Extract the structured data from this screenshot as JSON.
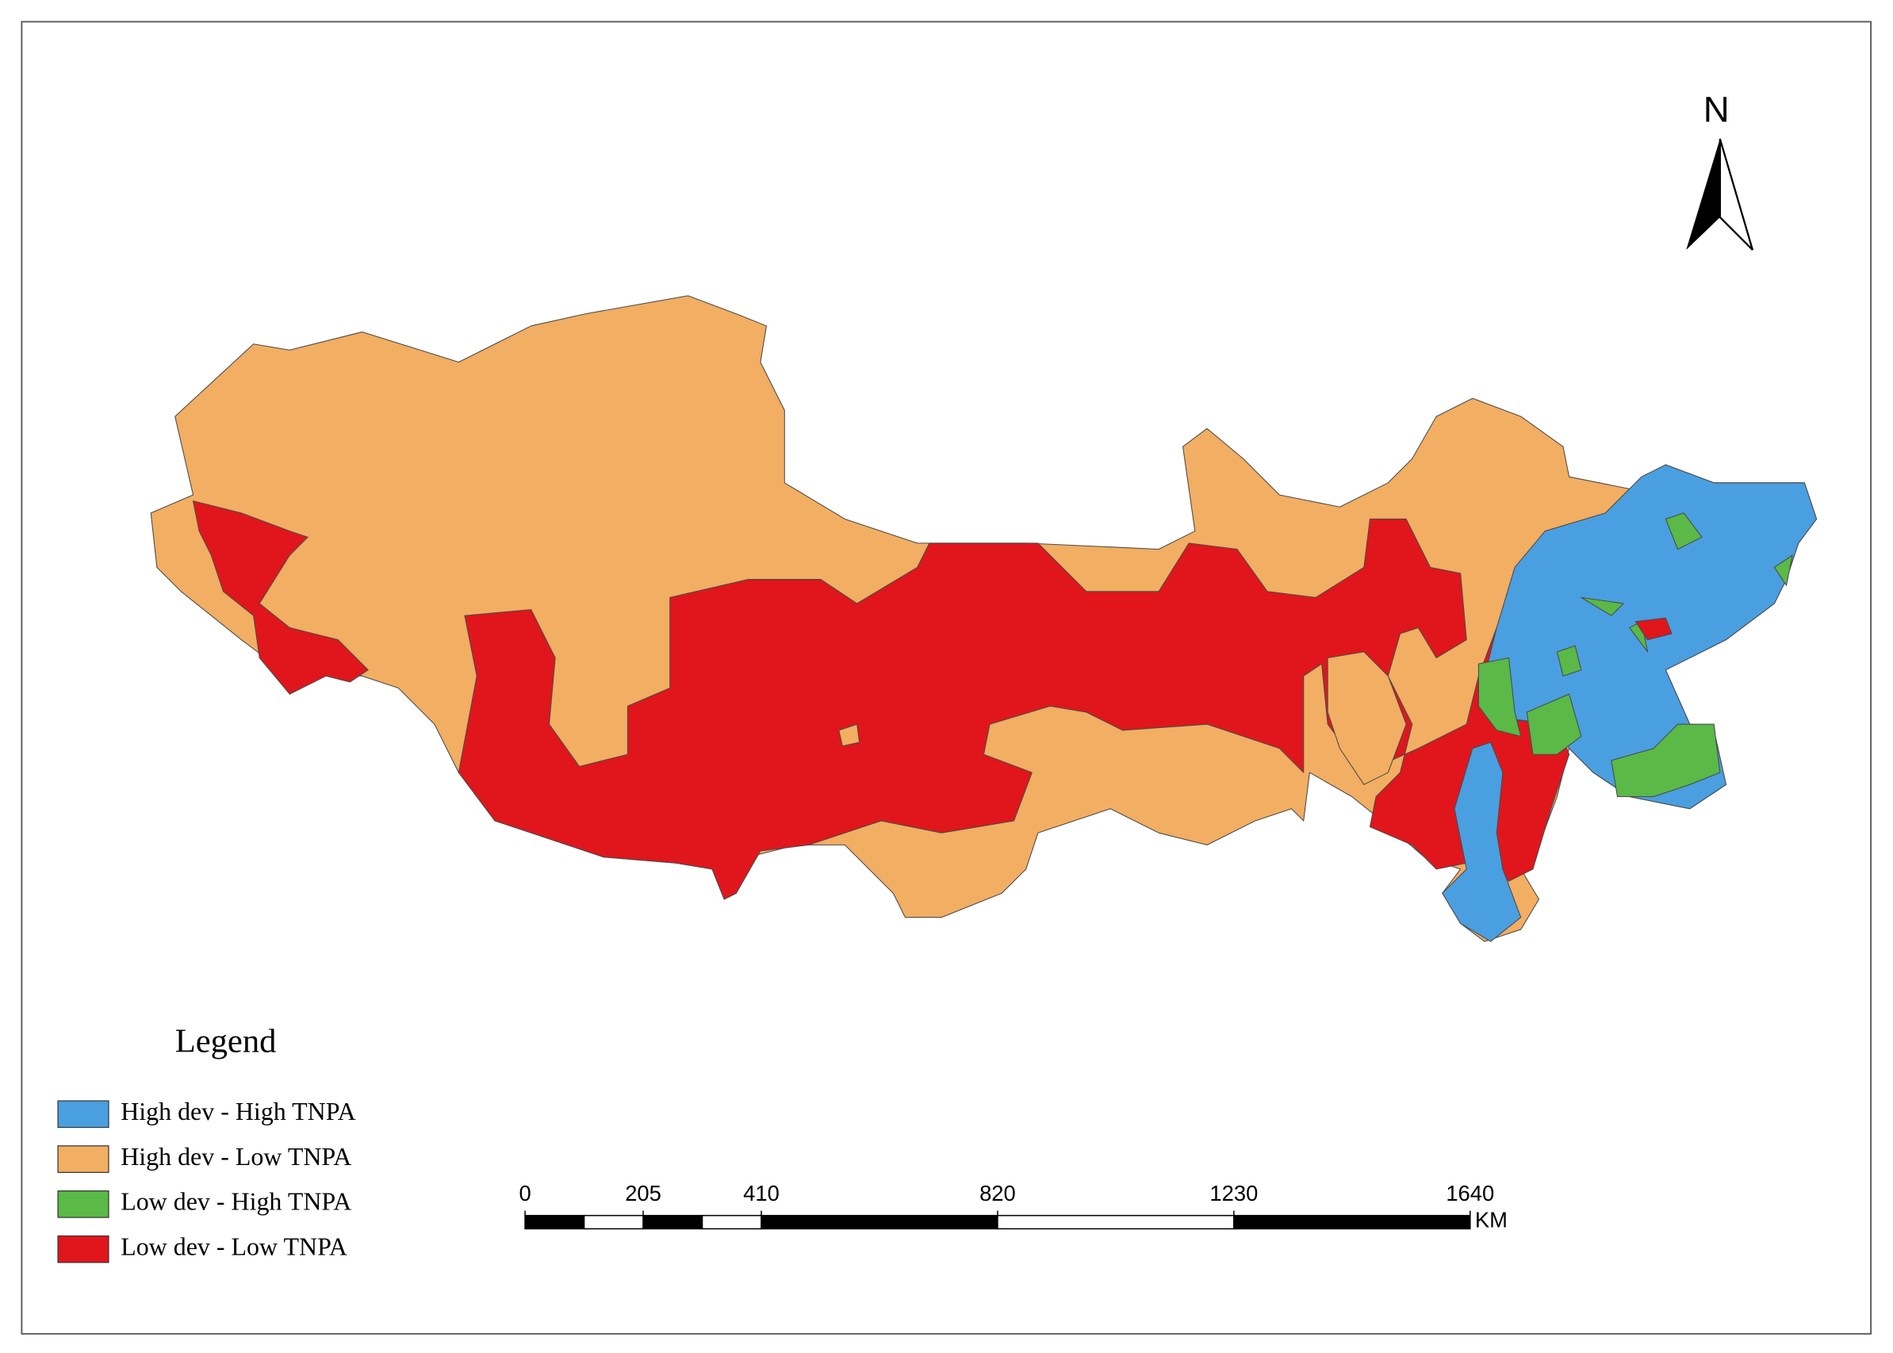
{
  "legend": {
    "title": "Legend",
    "items": [
      {
        "label": "High dev - High TNPA",
        "color": "#4a9fe0"
      },
      {
        "label": "High dev - Low TNPA",
        "color": "#f2ae62"
      },
      {
        "label": "Low dev - High TNPA",
        "color": "#5ab947"
      },
      {
        "label": "Low dev - Low TNPA",
        "color": "#e0161c"
      }
    ]
  },
  "north_arrow": {
    "label": "N"
  },
  "scale_bar": {
    "ticks": [
      0,
      205,
      410,
      820,
      1230,
      1640
    ],
    "unit": "KM"
  }
}
